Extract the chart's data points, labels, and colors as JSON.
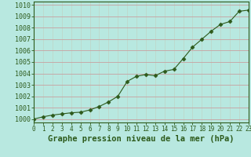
{
  "x": [
    0,
    1,
    2,
    3,
    4,
    5,
    6,
    7,
    8,
    9,
    10,
    11,
    12,
    13,
    14,
    15,
    16,
    17,
    18,
    19,
    20,
    21,
    22,
    23
  ],
  "y": [
    1000.0,
    1000.2,
    1000.35,
    1000.45,
    1000.55,
    1000.6,
    1000.8,
    1001.1,
    1001.5,
    1002.0,
    1003.3,
    1003.75,
    1003.9,
    1003.8,
    1004.2,
    1004.35,
    1005.3,
    1006.3,
    1007.0,
    1007.7,
    1008.3,
    1008.55,
    1009.45,
    1009.55
  ],
  "line_color": "#2d5a1b",
  "marker": "D",
  "marker_size": 2.5,
  "bg_color": "#b8e8e0",
  "grid_color_h": "#c8a0a0",
  "grid_color_v": "#c0d0c0",
  "xlabel": "Graphe pression niveau de la mer (hPa)",
  "xlabel_fontsize": 7.5,
  "ylabel_ticks": [
    1000,
    1001,
    1002,
    1003,
    1004,
    1005,
    1006,
    1007,
    1008,
    1009,
    1010
  ],
  "xlim": [
    0,
    23
  ],
  "ylim": [
    999.7,
    1010.3
  ],
  "xtick_labels": [
    "0",
    "1",
    "2",
    "3",
    "4",
    "5",
    "6",
    "7",
    "8",
    "9",
    "10",
    "11",
    "12",
    "13",
    "14",
    "15",
    "16",
    "17",
    "18",
    "19",
    "20",
    "21",
    "22",
    "23"
  ],
  "spine_color": "#2d5a1b",
  "tick_fontsize": 6.0,
  "xtick_fontsize": 5.5
}
